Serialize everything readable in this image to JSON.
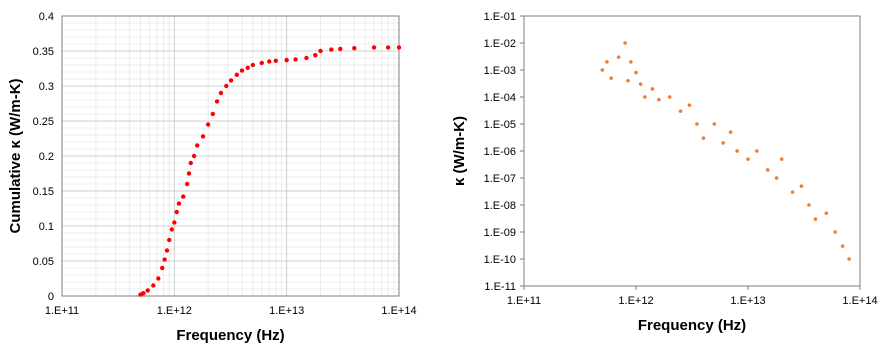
{
  "chart_data": [
    {
      "type": "scatter",
      "title": "",
      "xlabel": "Frequency (Hz)",
      "ylabel": "Cumulative κ (W/m-K)",
      "xscale": "log",
      "yscale": "linear",
      "xlim": [
        100000000000.0,
        100000000000000.0
      ],
      "ylim": [
        0,
        0.4
      ],
      "grid": true,
      "legend": "none",
      "marker_color": "#ff0000",
      "x_ticks": [
        "1.E+11",
        "1.E+12",
        "1.E+13",
        "1.E+14"
      ],
      "y_ticks": [
        "0",
        "0.05",
        "0.1",
        "0.15",
        "0.2",
        "0.25",
        "0.3",
        "0.35",
        "0.4"
      ],
      "series": [
        {
          "values": [
            [
              500000000000.0,
              0.002
            ],
            [
              530000000000.0,
              0.004
            ],
            [
              580000000000.0,
              0.008
            ],
            [
              650000000000.0,
              0.015
            ],
            [
              720000000000.0,
              0.025
            ],
            [
              780000000000.0,
              0.04
            ],
            [
              820000000000.0,
              0.052
            ],
            [
              860000000000.0,
              0.065
            ],
            [
              900000000000.0,
              0.08
            ],
            [
              950000000000.0,
              0.095
            ],
            [
              1000000000000.0,
              0.105
            ],
            [
              1050000000000.0,
              0.12
            ],
            [
              1100000000000.0,
              0.132
            ],
            [
              1200000000000.0,
              0.142
            ],
            [
              1300000000000.0,
              0.16
            ],
            [
              1350000000000.0,
              0.175
            ],
            [
              1400000000000.0,
              0.19
            ],
            [
              1500000000000.0,
              0.2
            ],
            [
              1600000000000.0,
              0.215
            ],
            [
              1800000000000.0,
              0.228
            ],
            [
              2000000000000.0,
              0.245
            ],
            [
              2200000000000.0,
              0.26
            ],
            [
              2400000000000.0,
              0.278
            ],
            [
              2600000000000.0,
              0.29
            ],
            [
              2900000000000.0,
              0.3
            ],
            [
              3200000000000.0,
              0.308
            ],
            [
              3600000000000.0,
              0.316
            ],
            [
              4000000000000.0,
              0.322
            ],
            [
              4500000000000.0,
              0.326
            ],
            [
              5000000000000.0,
              0.33
            ],
            [
              6000000000000.0,
              0.333
            ],
            [
              7000000000000.0,
              0.335
            ],
            [
              8000000000000.0,
              0.336
            ],
            [
              10000000000000.0,
              0.337
            ],
            [
              12000000000000.0,
              0.338
            ],
            [
              15000000000000.0,
              0.34
            ],
            [
              18000000000000.0,
              0.344
            ],
            [
              20000000000000.0,
              0.35
            ],
            [
              25000000000000.0,
              0.352
            ],
            [
              30000000000000.0,
              0.353
            ],
            [
              40000000000000.0,
              0.354
            ],
            [
              60000000000000.0,
              0.355
            ],
            [
              80000000000000.0,
              0.355
            ],
            [
              100000000000000.0,
              0.355
            ]
          ]
        }
      ]
    },
    {
      "type": "scatter",
      "title": "",
      "xlabel": "Frequency (Hz)",
      "ylabel": "κ (W/m-K)",
      "xscale": "log",
      "yscale": "log",
      "xlim": [
        100000000000.0,
        100000000000000.0
      ],
      "ylim": [
        1e-11,
        0.1
      ],
      "grid": false,
      "legend": "none",
      "marker_color": "#ed7d31",
      "x_ticks": [
        "1.E+11",
        "1.E+12",
        "1.E+13",
        "1.E+14"
      ],
      "y_ticks": [
        "1.E-11",
        "1.E-10",
        "1.E-09",
        "1.E-08",
        "1.E-07",
        "1.E-06",
        "1.E-05",
        "1.E-04",
        "1.E-03",
        "1.E-02",
        "1.E-01"
      ],
      "series": [
        {
          "values": [
            [
              500000000000.0,
              0.001
            ],
            [
              550000000000.0,
              0.002
            ],
            [
              600000000000.0,
              0.0005
            ],
            [
              700000000000.0,
              0.003
            ],
            [
              800000000000.0,
              0.01
            ],
            [
              850000000000.0,
              0.0004
            ],
            [
              900000000000.0,
              0.002
            ],
            [
              1000000000000.0,
              0.0008
            ],
            [
              1100000000000.0,
              0.0003
            ],
            [
              1200000000000.0,
              0.0001
            ],
            [
              1400000000000.0,
              0.0002
            ],
            [
              1600000000000.0,
              8e-05
            ],
            [
              2000000000000.0,
              0.0001
            ],
            [
              2500000000000.0,
              3e-05
            ],
            [
              3000000000000.0,
              5e-05
            ],
            [
              3500000000000.0,
              1e-05
            ],
            [
              4000000000000.0,
              3e-06
            ],
            [
              5000000000000.0,
              1e-05
            ],
            [
              6000000000000.0,
              2e-06
            ],
            [
              7000000000000.0,
              5e-06
            ],
            [
              8000000000000.0,
              1e-06
            ],
            [
              10000000000000.0,
              5e-07
            ],
            [
              12000000000000.0,
              1e-06
            ],
            [
              15000000000000.0,
              2e-07
            ],
            [
              18000000000000.0,
              1e-07
            ],
            [
              20000000000000.0,
              5e-07
            ],
            [
              25000000000000.0,
              3e-08
            ],
            [
              30000000000000.0,
              5e-08
            ],
            [
              35000000000000.0,
              1e-08
            ],
            [
              40000000000000.0,
              3e-09
            ],
            [
              50000000000000.0,
              5e-09
            ],
            [
              60000000000000.0,
              1e-09
            ],
            [
              70000000000000.0,
              3e-10
            ],
            [
              80000000000000.0,
              1e-10
            ]
          ]
        }
      ]
    }
  ]
}
